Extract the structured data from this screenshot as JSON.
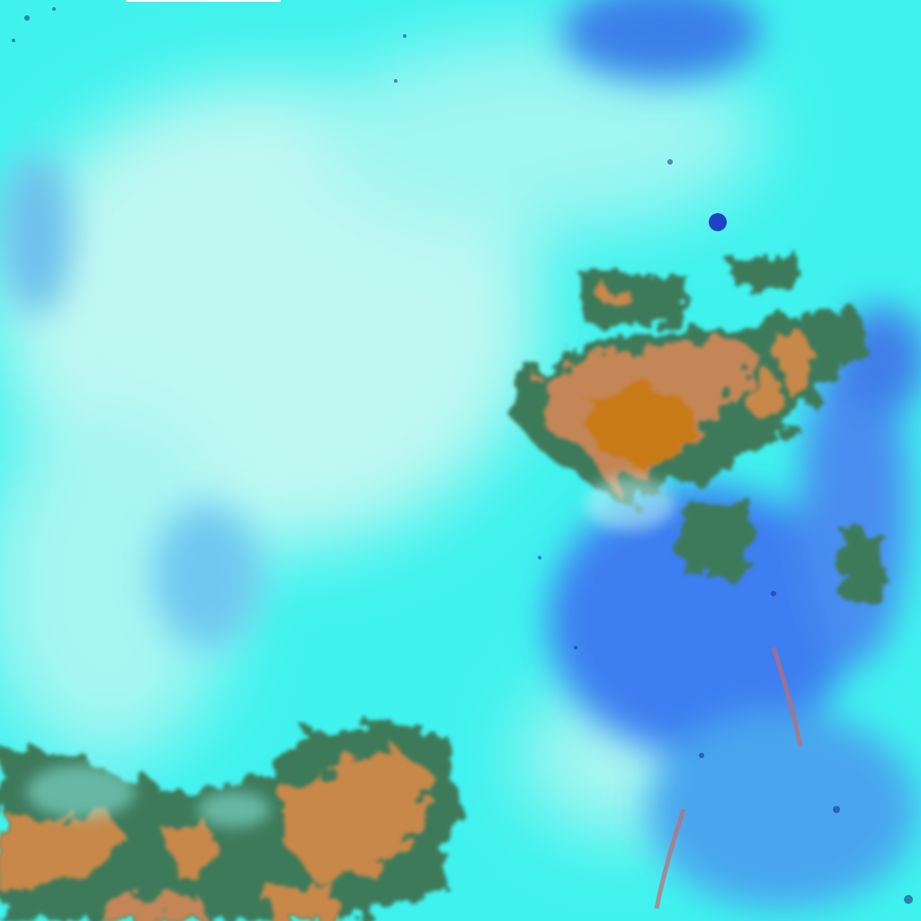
{
  "image": {
    "kind": "false-color satellite imagery",
    "colors": {
      "cloud_cyan": "#40f4f0",
      "cloud_light": "#c8fbf6",
      "ice_blue": "#3a7ef0",
      "land_orange": "#c8884a",
      "land_dark_orange": "#c87818",
      "vegetation_green": "#3c7a58",
      "shadow_navy": "#1a2a7a"
    }
  }
}
